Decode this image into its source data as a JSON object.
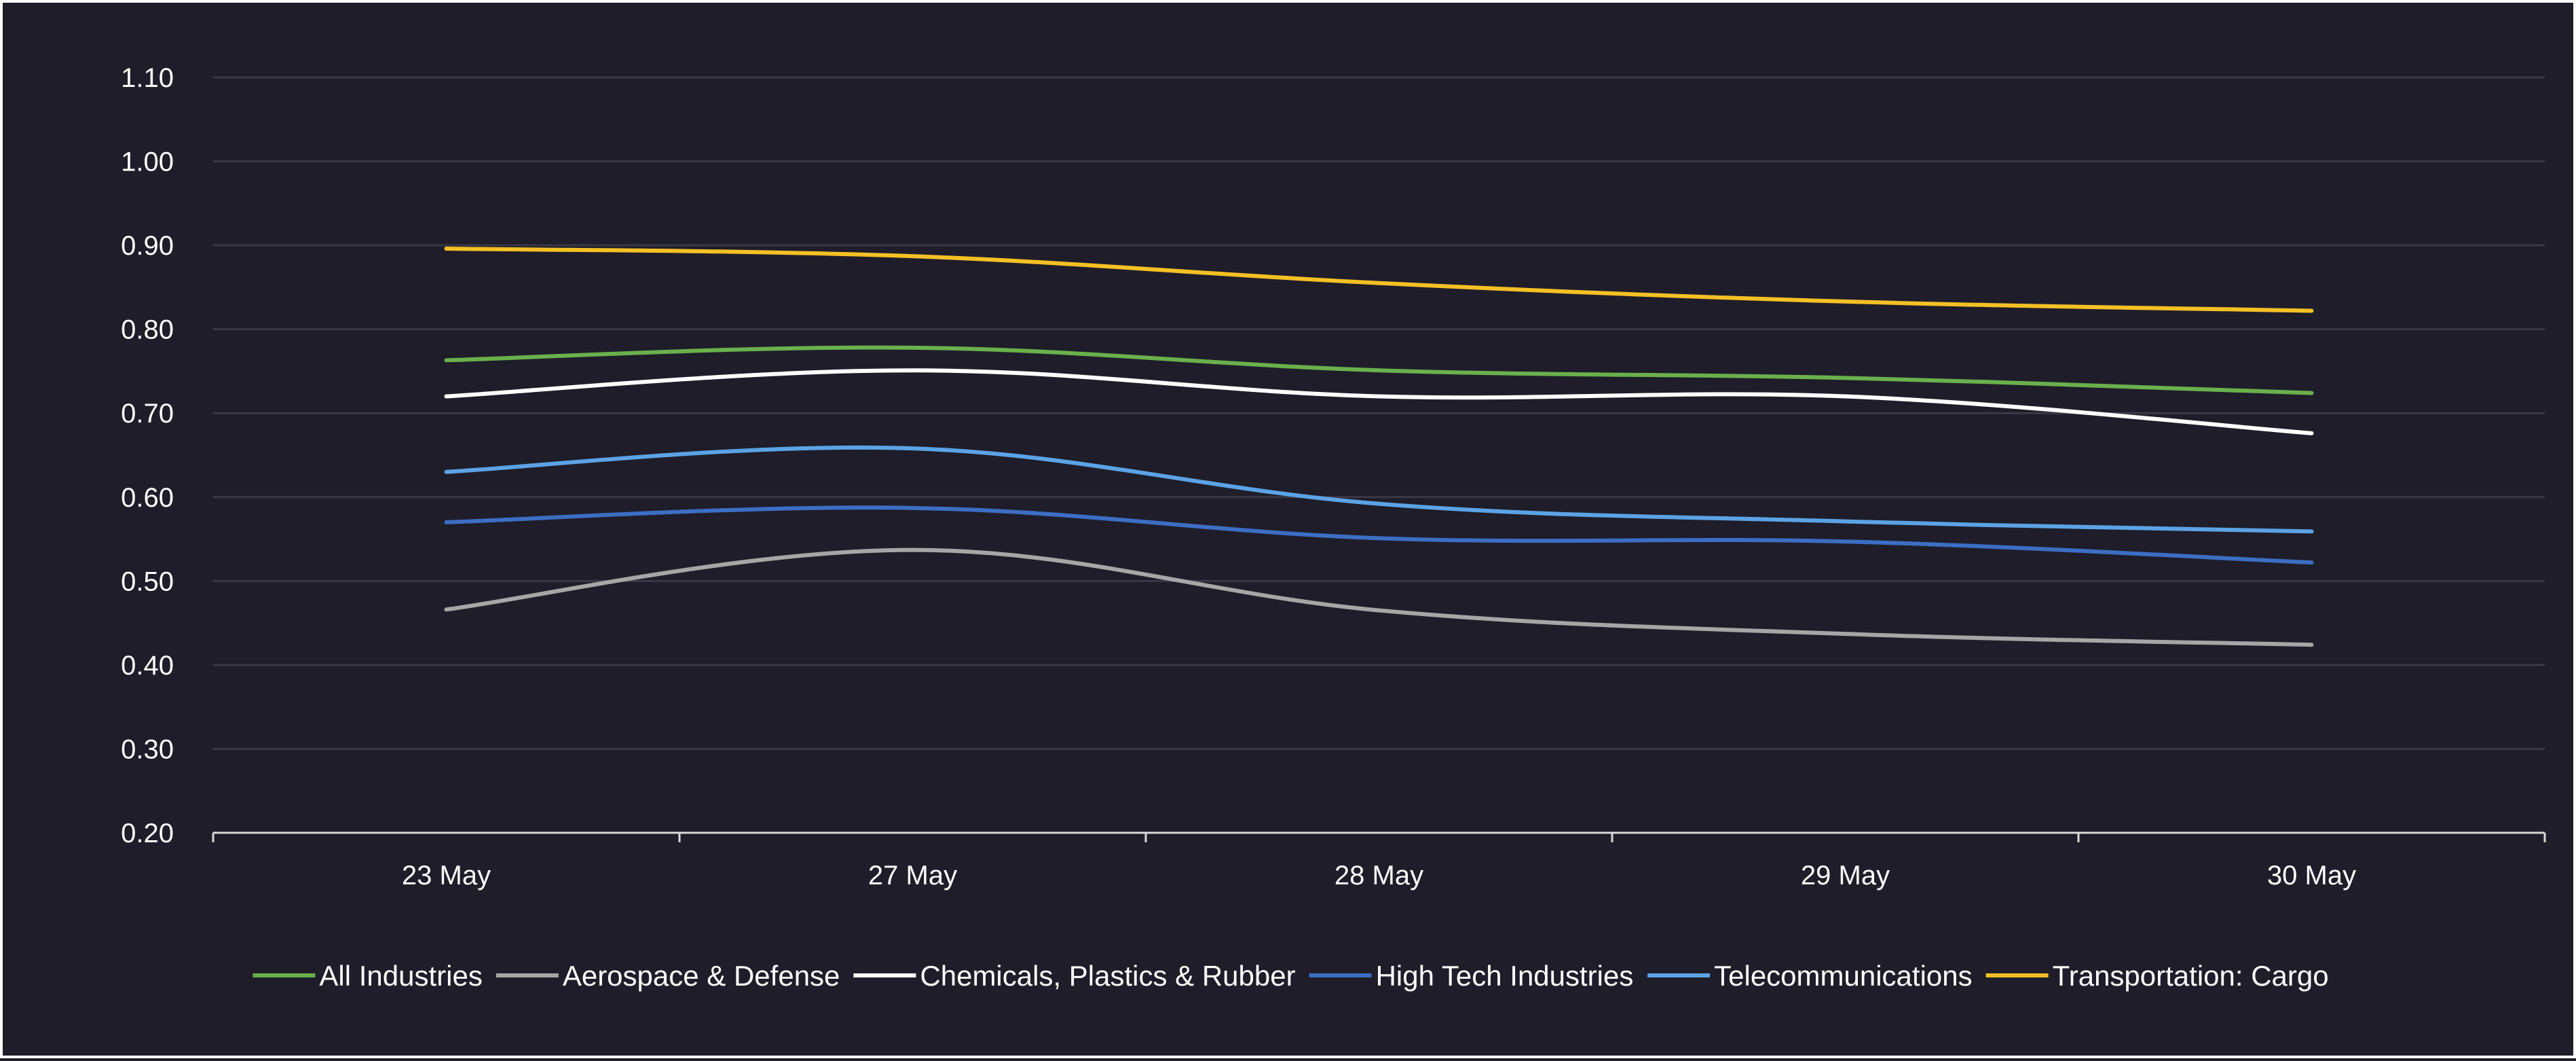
{
  "chart_data": {
    "type": "line",
    "title": "",
    "xlabel": "",
    "ylabel": "",
    "categories": [
      "23 May",
      "27 May",
      "28 May",
      "29 May",
      "30 May"
    ],
    "ylim": [
      0.2,
      1.1
    ],
    "yticks": [
      "0.20",
      "0.30",
      "0.40",
      "0.50",
      "0.60",
      "0.70",
      "0.80",
      "0.90",
      "1.00",
      "1.10"
    ],
    "grid": true,
    "legend_position": "bottom",
    "series": [
      {
        "name": "All Industries",
        "color": "#6ab04c",
        "values": [
          0.763,
          0.778,
          0.751,
          0.742,
          0.724
        ]
      },
      {
        "name": "Aerospace & Defense",
        "color": "#a6a6a6",
        "values": [
          0.466,
          0.537,
          0.465,
          0.437,
          0.424
        ]
      },
      {
        "name": "Chemicals, Plastics & Rubber",
        "color": "#ffffff",
        "values": [
          0.72,
          0.751,
          0.72,
          0.72,
          0.676
        ]
      },
      {
        "name": "High Tech Industries",
        "color": "#3c6ec3",
        "values": [
          0.57,
          0.587,
          0.551,
          0.547,
          0.522
        ]
      },
      {
        "name": "Telecommunications",
        "color": "#5ba3e6",
        "values": [
          0.63,
          0.658,
          0.592,
          0.571,
          0.559
        ]
      },
      {
        "name": "Transportation: Cargo",
        "color": "#f5c024",
        "values": [
          0.896,
          0.887,
          0.855,
          0.833,
          0.822
        ]
      }
    ]
  }
}
